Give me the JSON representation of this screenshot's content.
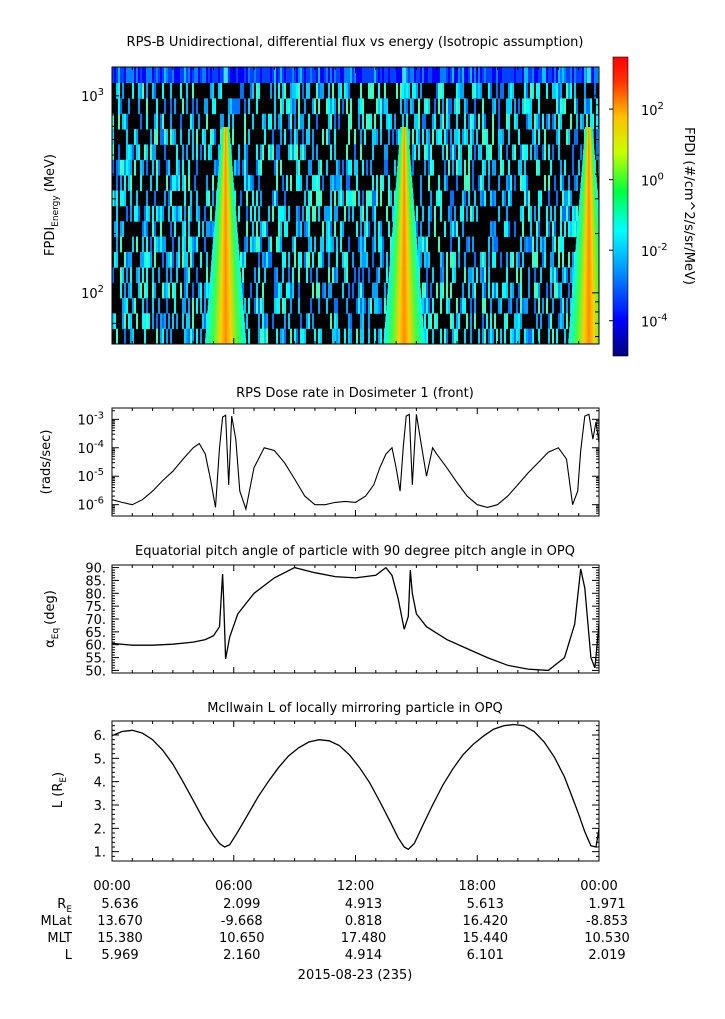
{
  "figure": {
    "date_label": "2015-08-23 (235)",
    "time_ticks": [
      "00:00",
      "06:00",
      "12:00",
      "18:00",
      "00:00"
    ],
    "ephemeris_rows": [
      {
        "label_main": "R",
        "label_sub": "E",
        "values": [
          "5.636",
          "2.099",
          "4.913",
          "5.613",
          "1.971"
        ]
      },
      {
        "label_main": "MLat",
        "label_sub": "",
        "values": [
          "13.670",
          "-9.668",
          "0.818",
          "16.420",
          "-8.853"
        ]
      },
      {
        "label_main": "MLT",
        "label_sub": "",
        "values": [
          "15.380",
          "10.650",
          "17.480",
          "15.440",
          "10.530"
        ]
      },
      {
        "label_main": "L",
        "label_sub": "",
        "values": [
          "5.969",
          "2.160",
          "4.914",
          "6.101",
          "2.019"
        ]
      }
    ]
  },
  "chart_data": [
    {
      "type": "heatmap",
      "title": "RPS-B  Unidirectional, differential flux vs energy (Isotropic assumption)",
      "ylabel_main": "FPDI",
      "ylabel_sub": "Energy",
      "ylabel_unit": "(MeV)",
      "yscale": "log",
      "ylim": [
        55,
        1400
      ],
      "y_ticks": [
        {
          "value": 100,
          "base": "10",
          "exp": "2"
        },
        {
          "value": 1000,
          "base": "10",
          "exp": "3"
        }
      ],
      "x_unit": "hours",
      "xlim": [
        0,
        24
      ],
      "colorbar": {
        "label": "FPDI (#/cm^2/s/sr/MeV)",
        "scale": "log",
        "range": [
          1e-05,
          3000
        ],
        "ticks": [
          {
            "base": "10",
            "exp": "2"
          },
          {
            "base": "10",
            "exp": "0"
          },
          {
            "base": "10",
            "exp": "-2"
          },
          {
            "base": "10",
            "exp": "-4"
          }
        ],
        "tick_values_log10": [
          2,
          0,
          -2,
          -4
        ]
      },
      "peak_flux_bands_hours": [
        5.6,
        14.4,
        23.5
      ],
      "top_energy_band_level": "10^-4"
    },
    {
      "type": "line",
      "title": "RPS  Dose rate in Dosimeter 1 (front)",
      "ylabel": "(rads/sec)",
      "yscale": "log",
      "ylim": [
        4e-07,
        0.0025
      ],
      "y_ticks": [
        {
          "base": "10",
          "exp": "-3"
        },
        {
          "base": "10",
          "exp": "-4"
        },
        {
          "base": "10",
          "exp": "-5"
        },
        {
          "base": "10",
          "exp": "-6"
        }
      ],
      "y_tick_values_log10": [
        -3,
        -4,
        -5,
        -6
      ],
      "x": [
        0,
        0.5,
        1.0,
        1.5,
        2.0,
        2.5,
        3.0,
        3.5,
        4.0,
        4.3,
        4.6,
        4.85,
        5.1,
        5.3,
        5.45,
        5.6,
        5.75,
        5.9,
        6.1,
        6.3,
        6.6,
        7.0,
        7.5,
        8.0,
        8.5,
        9.0,
        9.5,
        10.0,
        10.5,
        11.0,
        11.5,
        12.0,
        12.5,
        12.9,
        13.2,
        13.5,
        13.8,
        14.0,
        14.2,
        14.35,
        14.5,
        14.65,
        14.8,
        15.0,
        15.2,
        15.5,
        15.8,
        16.0,
        16.5,
        17.0,
        17.5,
        18.0,
        18.5,
        19.0,
        19.5,
        20.0,
        20.5,
        21.0,
        21.5,
        22.0,
        22.4,
        22.7,
        22.95,
        23.1,
        23.3,
        23.5,
        23.7,
        23.85,
        24.0
      ],
      "y": [
        1.5e-06,
        1.2e-06,
        1e-06,
        1.5e-06,
        3e-06,
        7e-06,
        1.5e-05,
        4e-05,
        0.0001,
        0.00014,
        6e-05,
        8e-06,
        8e-07,
        0.0001,
        0.0012,
        0.0014,
        5e-06,
        0.0013,
        0.0002,
        3e-06,
        7e-07,
        2e-05,
        0.0001,
        8e-05,
        3e-05,
        8e-06,
        2e-06,
        1e-06,
        1e-06,
        1.2e-06,
        1.3e-06,
        1.2e-06,
        2e-06,
        5e-06,
        2e-05,
        6e-05,
        0.0001,
        2e-05,
        3e-06,
        0.0001,
        0.0013,
        0.0015,
        5e-06,
        0.0015,
        0.0002,
        1e-05,
        0.0001,
        6e-05,
        2e-05,
        6e-06,
        2e-06,
        1e-06,
        8e-07,
        1e-06,
        2e-06,
        5e-06,
        1.3e-05,
        3e-05,
        7e-05,
        0.0001,
        4e-05,
        1e-06,
        3e-06,
        8e-05,
        0.0013,
        0.0015,
        0.0002,
        0.0008,
        0.00015
      ]
    },
    {
      "type": "line",
      "title": "Equatorial pitch angle of particle with 90 degree pitch angle in OPQ",
      "ylabel_main": "α",
      "ylabel_sub": "Eq",
      "ylabel_unit": "(deg)",
      "ylim": [
        49,
        91
      ],
      "y_ticks": [
        "90.",
        "85.",
        "80.",
        "75.",
        "70.",
        "65.",
        "60.",
        "55.",
        "50."
      ],
      "y_tick_values": [
        90,
        85,
        80,
        75,
        70,
        65,
        60,
        55,
        50
      ],
      "x": [
        0,
        1.0,
        2.0,
        3.0,
        4.0,
        4.6,
        5.0,
        5.3,
        5.45,
        5.5,
        5.6,
        5.8,
        6.2,
        7.0,
        8.0,
        9.0,
        10.0,
        11.0,
        12.0,
        13.0,
        13.5,
        13.8,
        14.1,
        14.4,
        14.6,
        14.7,
        14.8,
        15.0,
        15.5,
        16.5,
        17.5,
        18.5,
        19.5,
        20.5,
        21.5,
        22.3,
        22.8,
        23.1,
        23.3,
        23.6,
        23.8,
        24.0
      ],
      "y": [
        60.5,
        59.8,
        59.8,
        60.2,
        61.0,
        62.0,
        63.5,
        67.0,
        87.5,
        78.0,
        54.5,
        63.0,
        72.0,
        80.0,
        86.0,
        90.0,
        88.0,
        86.5,
        86.0,
        87.0,
        90.0,
        87.0,
        78.0,
        66.0,
        71.0,
        89.0,
        80.0,
        72.0,
        67.0,
        62.0,
        58.5,
        55.0,
        52.0,
        50.5,
        50.0,
        55.0,
        68.0,
        89.5,
        82.0,
        55.0,
        51.0,
        68.0
      ]
    },
    {
      "type": "line",
      "title": "McIlwain L of locally mirroring particle in OPQ",
      "ylabel_main": "L (R",
      "ylabel_sub": "E",
      "ylabel_unit": ")",
      "ylim": [
        0.6,
        6.6
      ],
      "y_ticks": [
        "6.",
        "5.",
        "4.",
        "3.",
        "2.",
        "1."
      ],
      "y_tick_values": [
        6,
        5,
        4,
        3,
        2,
        1
      ],
      "x": [
        0,
        0.5,
        1.0,
        1.5,
        2.0,
        2.5,
        3.0,
        3.5,
        4.0,
        4.5,
        5.0,
        5.3,
        5.55,
        5.8,
        6.2,
        6.7,
        7.2,
        7.7,
        8.2,
        8.7,
        9.2,
        9.7,
        10.2,
        10.7,
        11.2,
        11.7,
        12.2,
        12.7,
        13.2,
        13.7,
        14.1,
        14.4,
        14.6,
        14.9,
        15.3,
        15.8,
        16.3,
        16.8,
        17.3,
        17.8,
        18.3,
        18.8,
        19.3,
        19.8,
        20.3,
        20.8,
        21.3,
        21.8,
        22.3,
        22.7,
        23.0,
        23.3,
        23.6,
        23.85,
        24.0
      ],
      "y": [
        5.97,
        6.15,
        6.2,
        6.08,
        5.8,
        5.35,
        4.75,
        4.0,
        3.2,
        2.4,
        1.7,
        1.35,
        1.2,
        1.3,
        1.85,
        2.6,
        3.35,
        4.0,
        4.6,
        5.1,
        5.45,
        5.7,
        5.8,
        5.75,
        5.55,
        5.15,
        4.6,
        3.95,
        3.15,
        2.3,
        1.6,
        1.2,
        1.1,
        1.35,
        2.1,
        3.0,
        3.85,
        4.55,
        5.15,
        5.6,
        5.95,
        6.25,
        6.4,
        6.45,
        6.4,
        6.15,
        5.7,
        5.05,
        4.2,
        3.3,
        2.6,
        1.85,
        1.25,
        1.2,
        1.97
      ]
    }
  ]
}
